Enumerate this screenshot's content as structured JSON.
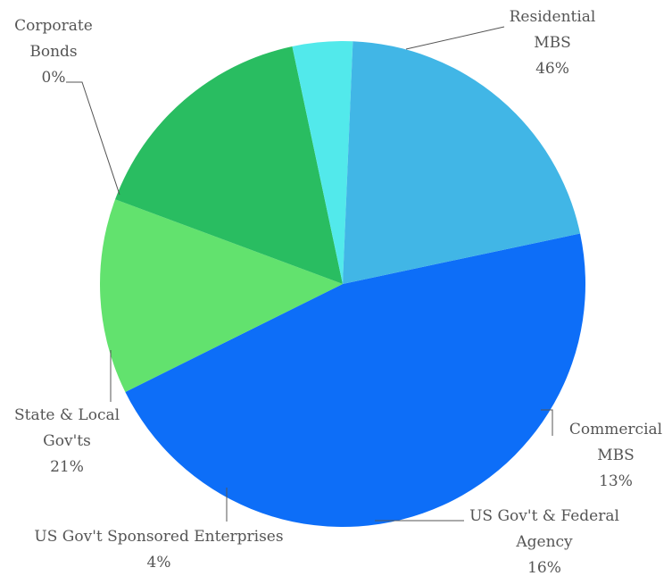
{
  "chart_data": {
    "type": "pie",
    "title": "",
    "slices": [
      {
        "name_lines": [
          "Residential",
          "MBS"
        ],
        "value": 46,
        "value_label": "46%",
        "color": "#0D6EF8"
      },
      {
        "name_lines": [
          "Commercial",
          "MBS"
        ],
        "value": 13,
        "value_label": "13%",
        "color": "#62E26E"
      },
      {
        "name_lines": [
          "US Gov't & Federal",
          "Agency"
        ],
        "value": 16,
        "value_label": "16%",
        "color": "#29BD61"
      },
      {
        "name_lines": [
          "US Gov't Sponsored Enterprises"
        ],
        "value": 4,
        "value_label": "4%",
        "color": "#52E9EB"
      },
      {
        "name_lines": [
          "State & Local",
          "Gov'ts"
        ],
        "value": 21,
        "value_label": "21%",
        "color": "#41B6E6"
      },
      {
        "name_lines": [
          "Corporate",
          "Bonds"
        ],
        "value": 0,
        "value_label": "0%",
        "color": "#0D6EF8"
      }
    ]
  }
}
